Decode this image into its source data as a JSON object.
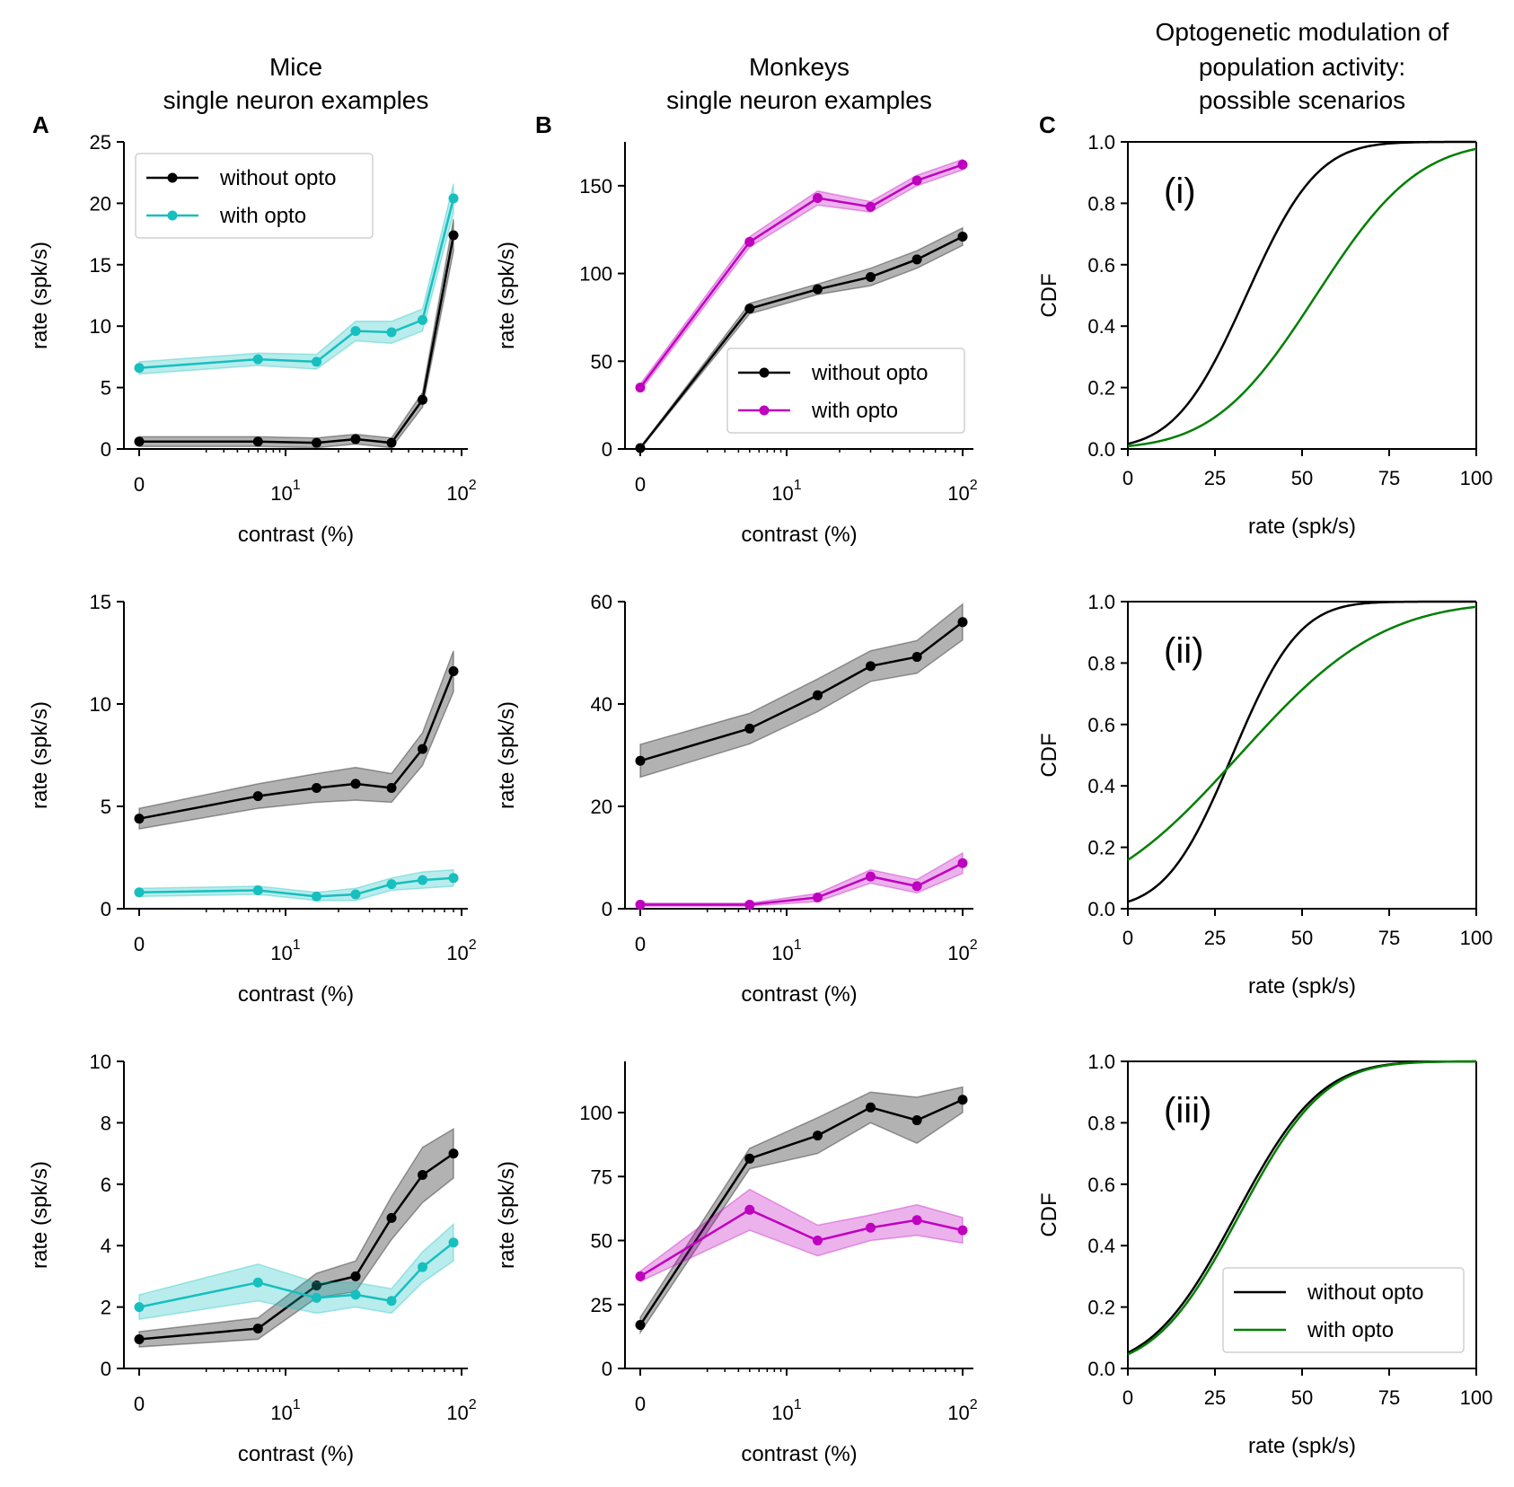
{
  "colors": {
    "without": "#000000",
    "opto_mice": "#17bfbf",
    "opto_monkeys": "#bf00bf",
    "opto_cdf": "#007f00",
    "band_alpha": 0.3
  },
  "chart_data": [
    {
      "id": "mice-1",
      "type": "line",
      "panel_letter": "A",
      "title": "Mice\nsingle neuron examples",
      "xlabel": "contrast (%)",
      "ylabel": "rate (spk/s)",
      "xscale": "symlog",
      "xticklabels": [
        "0",
        "10",
        "10"
      ],
      "xtick_exponents": [
        "",
        "1",
        "2"
      ],
      "ylim": [
        0,
        25
      ],
      "yticks": [
        0,
        5,
        10,
        15,
        20,
        25
      ],
      "x": [
        0,
        6,
        15,
        25,
        40,
        60,
        90
      ],
      "series": [
        {
          "name": "without opto",
          "color_key": "without",
          "values": [
            0.6,
            0.6,
            0.5,
            0.8,
            0.5,
            4.0,
            17.4
          ],
          "err": [
            0.4,
            0.4,
            0.4,
            0.4,
            0.4,
            0.6,
            1.3
          ]
        },
        {
          "name": "with opto",
          "color_key": "opto_mice",
          "values": [
            6.6,
            7.3,
            7.1,
            9.6,
            9.5,
            10.5,
            20.4
          ],
          "err": [
            0.5,
            0.5,
            0.6,
            0.8,
            0.9,
            0.9,
            1.2
          ]
        }
      ],
      "legend": "upper-left"
    },
    {
      "id": "mice-2",
      "type": "line",
      "xlabel": "contrast (%)",
      "ylabel": "rate (spk/s)",
      "xscale": "symlog",
      "xticklabels": [
        "0",
        "10",
        "10"
      ],
      "xtick_exponents": [
        "",
        "1",
        "2"
      ],
      "ylim": [
        0,
        15
      ],
      "yticks": [
        0,
        5,
        10,
        15
      ],
      "x": [
        0,
        6,
        15,
        25,
        40,
        60,
        90
      ],
      "series": [
        {
          "color_key": "without",
          "values": [
            4.4,
            5.5,
            5.9,
            6.1,
            5.9,
            7.8,
            11.6
          ],
          "err": [
            0.5,
            0.6,
            0.7,
            0.8,
            0.7,
            0.8,
            1.0
          ]
        },
        {
          "color_key": "opto_mice",
          "values": [
            0.8,
            0.9,
            0.6,
            0.7,
            1.2,
            1.4,
            1.5
          ],
          "err": [
            0.2,
            0.2,
            0.2,
            0.3,
            0.3,
            0.4,
            0.4
          ]
        }
      ]
    },
    {
      "id": "mice-3",
      "type": "line",
      "xlabel": "contrast (%)",
      "ylabel": "rate (spk/s)",
      "xscale": "symlog",
      "xticklabels": [
        "0",
        "10",
        "10"
      ],
      "xtick_exponents": [
        "",
        "1",
        "2"
      ],
      "ylim": [
        0,
        10
      ],
      "yticks": [
        0,
        2,
        4,
        6,
        8,
        10
      ],
      "x": [
        0,
        6,
        15,
        25,
        40,
        60,
        90
      ],
      "series": [
        {
          "color_key": "without",
          "values": [
            0.95,
            1.3,
            2.7,
            3.0,
            4.9,
            6.3,
            7.0
          ],
          "err": [
            0.25,
            0.35,
            0.4,
            0.5,
            0.7,
            0.9,
            0.8
          ]
        },
        {
          "color_key": "opto_mice",
          "values": [
            2.0,
            2.8,
            2.3,
            2.4,
            2.2,
            3.3,
            4.1
          ],
          "err": [
            0.4,
            0.6,
            0.5,
            0.4,
            0.4,
            0.5,
            0.6
          ]
        }
      ]
    },
    {
      "id": "monkeys-1",
      "type": "line",
      "panel_letter": "B",
      "title": "Monkeys\nsingle neuron examples",
      "xlabel": "contrast (%)",
      "ylabel": "rate (spk/s)",
      "xscale": "symlog",
      "xticklabels": [
        "0",
        "10",
        "10"
      ],
      "xtick_exponents": [
        "",
        "1",
        "2"
      ],
      "ylim": [
        0,
        175
      ],
      "yticks": [
        0,
        50,
        100,
        150
      ],
      "x": [
        0,
        5,
        15,
        30,
        55,
        100
      ],
      "series": [
        {
          "name": "without opto",
          "color_key": "without",
          "values": [
            0.5,
            80,
            91,
            98,
            108,
            121
          ],
          "err": [
            0.5,
            3,
            3,
            5,
            5,
            5
          ]
        },
        {
          "name": "with opto",
          "color_key": "opto_monkeys",
          "values": [
            35,
            118,
            143,
            138,
            153,
            162
          ],
          "err": [
            2,
            3,
            4,
            3,
            3,
            3
          ]
        }
      ],
      "legend": "lower-right"
    },
    {
      "id": "monkeys-2",
      "type": "line",
      "xlabel": "contrast (%)",
      "ylabel": "rate (spk/s)",
      "xscale": "symlog",
      "xticklabels": [
        "0",
        "10",
        "10"
      ],
      "xtick_exponents": [
        "",
        "1",
        "2"
      ],
      "ylim": [
        0,
        60
      ],
      "yticks": [
        0,
        20,
        40,
        60
      ],
      "x": [
        0,
        5,
        15,
        30,
        55,
        100
      ],
      "series": [
        {
          "color_key": "without",
          "values": [
            28.9,
            35.2,
            41.7,
            47.4,
            49.2,
            56.0
          ],
          "err": [
            3.2,
            3.0,
            3.2,
            3.0,
            3.2,
            3.5
          ]
        },
        {
          "color_key": "opto_monkeys",
          "values": [
            0.8,
            0.8,
            2.2,
            6.3,
            4.4,
            8.9
          ],
          "err": [
            0.3,
            0.3,
            0.8,
            1.3,
            1.3,
            2.0
          ]
        }
      ]
    },
    {
      "id": "monkeys-3",
      "type": "line",
      "xlabel": "contrast (%)",
      "ylabel": "rate (spk/s)",
      "xscale": "symlog",
      "xticklabels": [
        "0",
        "10",
        "10"
      ],
      "xtick_exponents": [
        "",
        "1",
        "2"
      ],
      "ylim": [
        0,
        120
      ],
      "yticks": [
        0,
        25,
        50,
        75,
        100
      ],
      "x": [
        0,
        5,
        15,
        30,
        55,
        100
      ],
      "series": [
        {
          "color_key": "without",
          "values": [
            17,
            82,
            91,
            102,
            97,
            105
          ],
          "err": [
            3,
            4,
            7,
            6,
            9,
            5
          ]
        },
        {
          "color_key": "opto_monkeys",
          "values": [
            36,
            62,
            50,
            55,
            58,
            54
          ],
          "err": [
            2,
            8,
            6,
            5,
            6,
            5
          ]
        }
      ]
    },
    {
      "id": "cdf-1",
      "type": "line",
      "panel_letter": "C",
      "title": "Optogenetic modulation of\npopulation activity:\npossible scenarios",
      "scenario": "(i)",
      "xlabel": "rate (spk/s)",
      "ylabel": "CDF",
      "xlim": [
        0,
        100
      ],
      "xticks": [
        0,
        25,
        50,
        75,
        100
      ],
      "ylim": [
        0,
        1
      ],
      "yticks": [
        "0.0",
        "0.2",
        "0.4",
        "0.6",
        "0.8",
        "1.0"
      ],
      "series": [
        {
          "color_key": "without",
          "cdf_mu": 34,
          "cdf_sigma": 16
        },
        {
          "color_key": "opto_cdf",
          "cdf_mu": 54,
          "cdf_sigma": 23
        }
      ]
    },
    {
      "id": "cdf-2",
      "type": "line",
      "scenario": "(ii)",
      "xlabel": "rate (spk/s)",
      "ylabel": "CDF",
      "xlim": [
        0,
        100
      ],
      "xticks": [
        0,
        25,
        50,
        75,
        100
      ],
      "ylim": [
        0,
        1
      ],
      "yticks": [
        "0.0",
        "0.2",
        "0.4",
        "0.6",
        "0.8",
        "1.0"
      ],
      "series": [
        {
          "color_key": "without",
          "cdf_mu": 30,
          "cdf_sigma": 15
        },
        {
          "color_key": "opto_cdf",
          "cdf_mu": 32,
          "cdf_sigma": 32
        }
      ]
    },
    {
      "id": "cdf-3",
      "type": "line",
      "scenario": "(iii)",
      "xlabel": "rate (spk/s)",
      "ylabel": "CDF",
      "xlim": [
        0,
        100
      ],
      "xticks": [
        0,
        25,
        50,
        75,
        100
      ],
      "ylim": [
        0,
        1
      ],
      "yticks": [
        "0.0",
        "0.2",
        "0.4",
        "0.6",
        "0.8",
        "1.0"
      ],
      "series": [
        {
          "name": "without opto",
          "color_key": "without",
          "cdf_mu": 31,
          "cdf_sigma": 19
        },
        {
          "name": "with opto",
          "color_key": "opto_cdf",
          "cdf_mu": 32,
          "cdf_sigma": 19
        }
      ],
      "legend": "lower-right"
    }
  ]
}
